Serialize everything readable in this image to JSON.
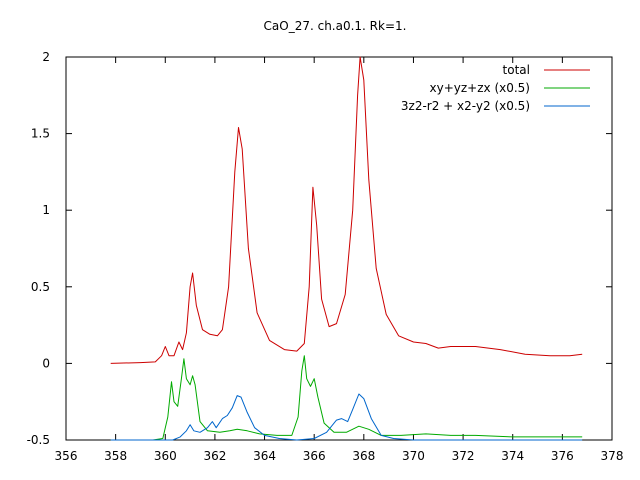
{
  "chart_data": {
    "type": "line",
    "title": "CaO_27. ch.a0.1. Rk=1.",
    "xlabel": "",
    "ylabel": "",
    "xlim": [
      356,
      378
    ],
    "ylim": [
      -0.5,
      2
    ],
    "xticks": [
      "356",
      "358",
      "360",
      "362",
      "364",
      "366",
      "368",
      "370",
      "372",
      "374",
      "376",
      "378"
    ],
    "yticks": [
      "-0.5",
      "0",
      "0.5",
      "1",
      "1.5",
      "2"
    ],
    "grid": false,
    "legend_position": "top-right",
    "series": [
      {
        "name": "total",
        "color": "#cc0000",
        "points": [
          [
            357.8,
            0.0
          ],
          [
            359.0,
            0.005
          ],
          [
            359.6,
            0.01
          ],
          [
            359.85,
            0.05
          ],
          [
            360.0,
            0.11
          ],
          [
            360.15,
            0.05
          ],
          [
            360.35,
            0.05
          ],
          [
            360.55,
            0.14
          ],
          [
            360.7,
            0.09
          ],
          [
            360.85,
            0.2
          ],
          [
            361.0,
            0.5
          ],
          [
            361.1,
            0.59
          ],
          [
            361.25,
            0.38
          ],
          [
            361.5,
            0.22
          ],
          [
            361.8,
            0.19
          ],
          [
            362.1,
            0.18
          ],
          [
            362.3,
            0.22
          ],
          [
            362.55,
            0.5
          ],
          [
            362.8,
            1.25
          ],
          [
            362.95,
            1.54
          ],
          [
            363.1,
            1.4
          ],
          [
            363.35,
            0.75
          ],
          [
            363.7,
            0.33
          ],
          [
            364.2,
            0.15
          ],
          [
            364.8,
            0.09
          ],
          [
            365.3,
            0.08
          ],
          [
            365.6,
            0.13
          ],
          [
            365.8,
            0.5
          ],
          [
            365.95,
            1.15
          ],
          [
            366.1,
            0.9
          ],
          [
            366.3,
            0.42
          ],
          [
            366.6,
            0.24
          ],
          [
            366.9,
            0.26
          ],
          [
            367.25,
            0.45
          ],
          [
            367.55,
            1.0
          ],
          [
            367.75,
            1.75
          ],
          [
            367.85,
            2.0
          ],
          [
            368.0,
            1.85
          ],
          [
            368.2,
            1.2
          ],
          [
            368.5,
            0.62
          ],
          [
            368.9,
            0.32
          ],
          [
            369.4,
            0.18
          ],
          [
            370.0,
            0.14
          ],
          [
            370.5,
            0.13
          ],
          [
            371.0,
            0.1
          ],
          [
            371.5,
            0.11
          ],
          [
            372.5,
            0.11
          ],
          [
            373.5,
            0.09
          ],
          [
            374.5,
            0.06
          ],
          [
            375.5,
            0.05
          ],
          [
            376.3,
            0.05
          ],
          [
            376.8,
            0.06
          ]
        ]
      },
      {
        "name": "xy+yz+zx (x0.5)",
        "color": "#00aa00",
        "points": [
          [
            357.8,
            -0.5
          ],
          [
            359.5,
            -0.5
          ],
          [
            359.9,
            -0.49
          ],
          [
            360.1,
            -0.35
          ],
          [
            360.25,
            -0.12
          ],
          [
            360.35,
            -0.25
          ],
          [
            360.5,
            -0.28
          ],
          [
            360.65,
            -0.1
          ],
          [
            360.75,
            0.03
          ],
          [
            360.85,
            -0.1
          ],
          [
            361.0,
            -0.14
          ],
          [
            361.1,
            -0.08
          ],
          [
            361.2,
            -0.14
          ],
          [
            361.4,
            -0.38
          ],
          [
            361.7,
            -0.44
          ],
          [
            362.2,
            -0.45
          ],
          [
            362.6,
            -0.44
          ],
          [
            362.9,
            -0.43
          ],
          [
            363.3,
            -0.44
          ],
          [
            363.8,
            -0.46
          ],
          [
            364.5,
            -0.47
          ],
          [
            365.1,
            -0.47
          ],
          [
            365.35,
            -0.35
          ],
          [
            365.5,
            -0.05
          ],
          [
            365.6,
            0.05
          ],
          [
            365.7,
            -0.1
          ],
          [
            365.85,
            -0.15
          ],
          [
            366.0,
            -0.1
          ],
          [
            366.15,
            -0.22
          ],
          [
            366.4,
            -0.39
          ],
          [
            366.8,
            -0.45
          ],
          [
            367.3,
            -0.45
          ],
          [
            367.8,
            -0.41
          ],
          [
            368.2,
            -0.43
          ],
          [
            368.7,
            -0.47
          ],
          [
            369.5,
            -0.47
          ],
          [
            370.5,
            -0.46
          ],
          [
            371.5,
            -0.47
          ],
          [
            372.5,
            -0.47
          ],
          [
            374.0,
            -0.48
          ],
          [
            375.5,
            -0.48
          ],
          [
            376.8,
            -0.48
          ]
        ]
      },
      {
        "name": "3z2-r2 + x2-y2 (x0.5)",
        "color": "#0066cc",
        "points": [
          [
            357.8,
            -0.5
          ],
          [
            360.3,
            -0.5
          ],
          [
            360.6,
            -0.48
          ],
          [
            360.85,
            -0.44
          ],
          [
            361.0,
            -0.4
          ],
          [
            361.15,
            -0.44
          ],
          [
            361.4,
            -0.45
          ],
          [
            361.7,
            -0.42
          ],
          [
            361.9,
            -0.38
          ],
          [
            362.05,
            -0.42
          ],
          [
            362.3,
            -0.36
          ],
          [
            362.5,
            -0.34
          ],
          [
            362.7,
            -0.29
          ],
          [
            362.9,
            -0.21
          ],
          [
            363.05,
            -0.22
          ],
          [
            363.3,
            -0.32
          ],
          [
            363.6,
            -0.42
          ],
          [
            364.0,
            -0.47
          ],
          [
            364.6,
            -0.49
          ],
          [
            365.3,
            -0.5
          ],
          [
            366.0,
            -0.49
          ],
          [
            366.5,
            -0.45
          ],
          [
            366.9,
            -0.37
          ],
          [
            367.1,
            -0.36
          ],
          [
            367.35,
            -0.38
          ],
          [
            367.55,
            -0.3
          ],
          [
            367.8,
            -0.2
          ],
          [
            368.0,
            -0.23
          ],
          [
            368.3,
            -0.36
          ],
          [
            368.7,
            -0.47
          ],
          [
            369.2,
            -0.49
          ],
          [
            370.0,
            -0.5
          ],
          [
            372.0,
            -0.5
          ],
          [
            374.0,
            -0.5
          ],
          [
            376.8,
            -0.5
          ]
        ]
      }
    ]
  }
}
